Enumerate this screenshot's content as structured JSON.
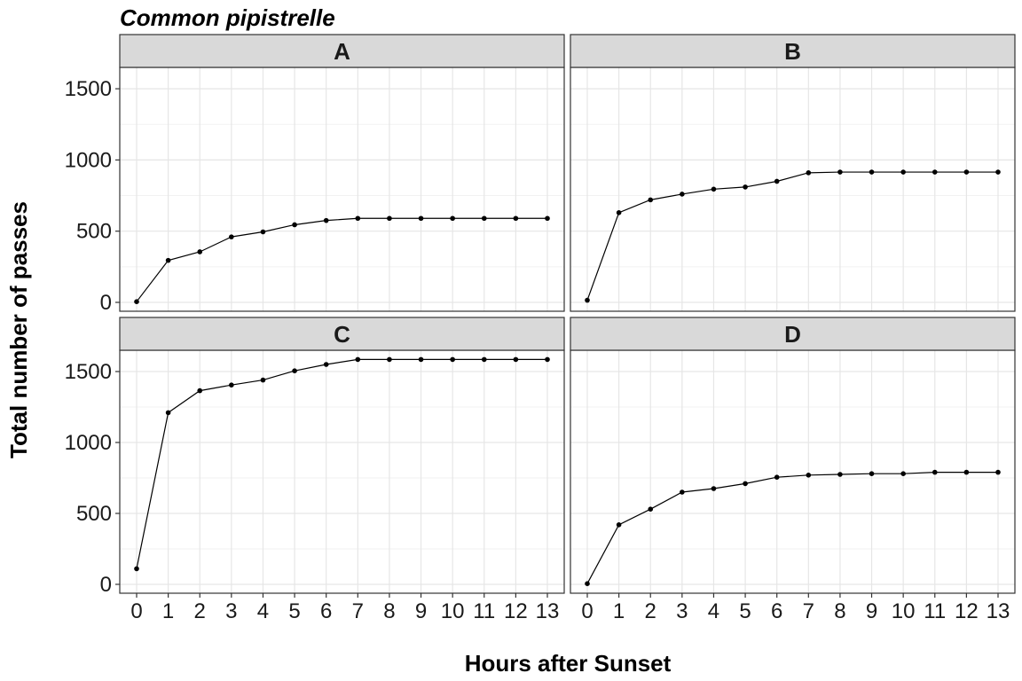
{
  "chart_data": {
    "type": "line",
    "title": "Common pipistrelle",
    "xlabel": "Hours after Sunset",
    "ylabel": "Total number of passes",
    "x": [
      0,
      1,
      2,
      3,
      4,
      5,
      6,
      7,
      8,
      9,
      10,
      11,
      12,
      13
    ],
    "xlim": [
      0,
      13
    ],
    "ylim": [
      0,
      1650
    ],
    "y_ticks": [
      0,
      500,
      1000,
      1500
    ],
    "grid": true,
    "facets": [
      {
        "label": "A",
        "values": [
          5,
          295,
          355,
          460,
          495,
          545,
          575,
          590,
          590,
          590,
          590,
          590,
          590,
          590
        ]
      },
      {
        "label": "B",
        "values": [
          15,
          630,
          720,
          760,
          795,
          810,
          850,
          910,
          915,
          915,
          915,
          915,
          915,
          915
        ]
      },
      {
        "label": "C",
        "values": [
          110,
          1210,
          1365,
          1405,
          1440,
          1505,
          1550,
          1585,
          1585,
          1585,
          1585,
          1585,
          1585,
          1585
        ]
      },
      {
        "label": "D",
        "values": [
          5,
          420,
          530,
          650,
          675,
          710,
          755,
          770,
          775,
          780,
          780,
          790,
          790,
          790
        ]
      }
    ]
  }
}
